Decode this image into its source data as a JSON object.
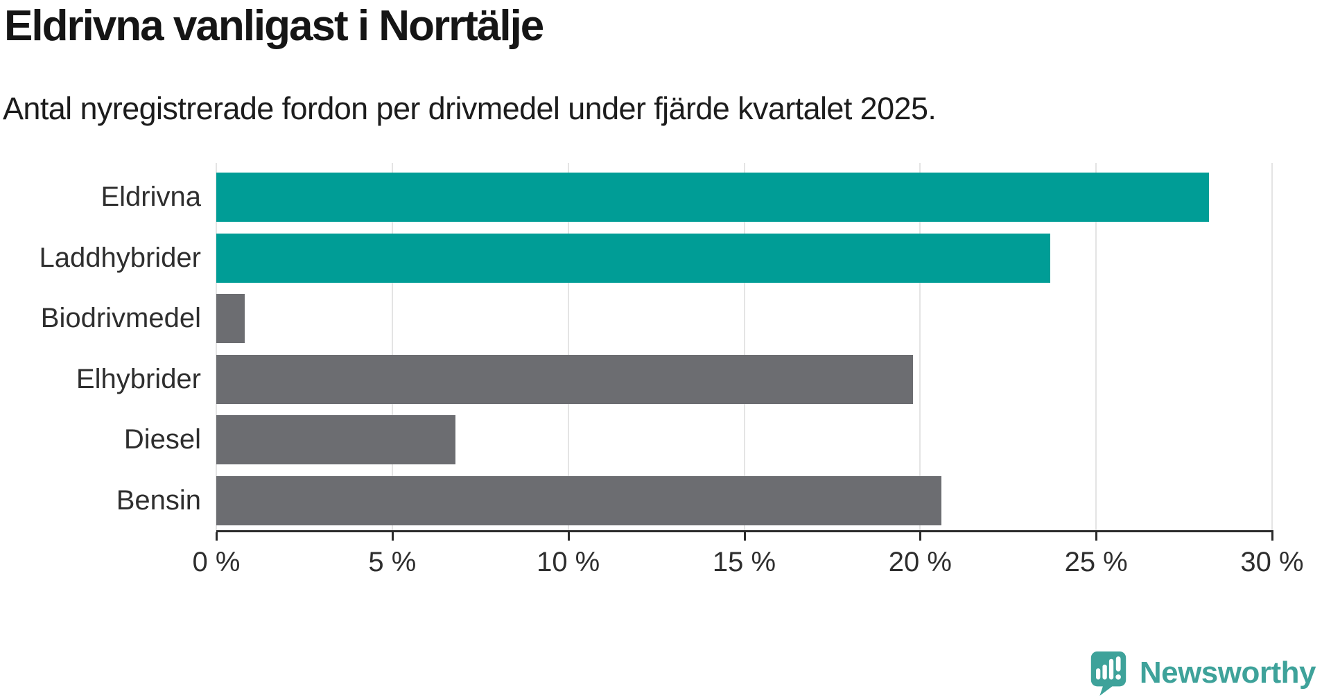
{
  "header": {
    "title": "Eldrivna vanligast i Norrtälje",
    "subtitle": "Antal nyregistrerade fordon per drivmedel under fjärde kvartalet 2025."
  },
  "chart_data": {
    "type": "bar",
    "orientation": "horizontal",
    "title": "Eldrivna vanligast i Norrtälje",
    "categories": [
      "Eldrivna",
      "Laddhybrider",
      "Biodrivmedel",
      "Elhybrider",
      "Diesel",
      "Bensin"
    ],
    "values": [
      28.2,
      23.7,
      0.8,
      19.8,
      6.8,
      20.6
    ],
    "unit": "%",
    "bar_colors": [
      "#009D96",
      "#009D96",
      "#6C6D71",
      "#6C6D71",
      "#6C6D71",
      "#6C6D71"
    ],
    "xlabel": "",
    "ylabel": "",
    "xlim": [
      0,
      30
    ],
    "x_ticks": [
      0,
      5,
      10,
      15,
      20,
      25,
      30
    ],
    "x_tick_labels": [
      "0 %",
      "5 %",
      "10 %",
      "15 %",
      "20 %",
      "25 %",
      "30 %"
    ],
    "grid": true,
    "legend": "none"
  },
  "branding": {
    "logo_text": "Newsworthy",
    "logo_color": "#3EA29A",
    "icon": "newsworthy-speech-bubble-bar-chart-icon"
  },
  "colors": {
    "accent_teal": "#009D96",
    "neutral_gray": "#6C6D71",
    "gridline": "#E4E4E4",
    "axis": "#2A2A2A",
    "text_dark": "#151515",
    "text_label": "#2E2E2E"
  }
}
